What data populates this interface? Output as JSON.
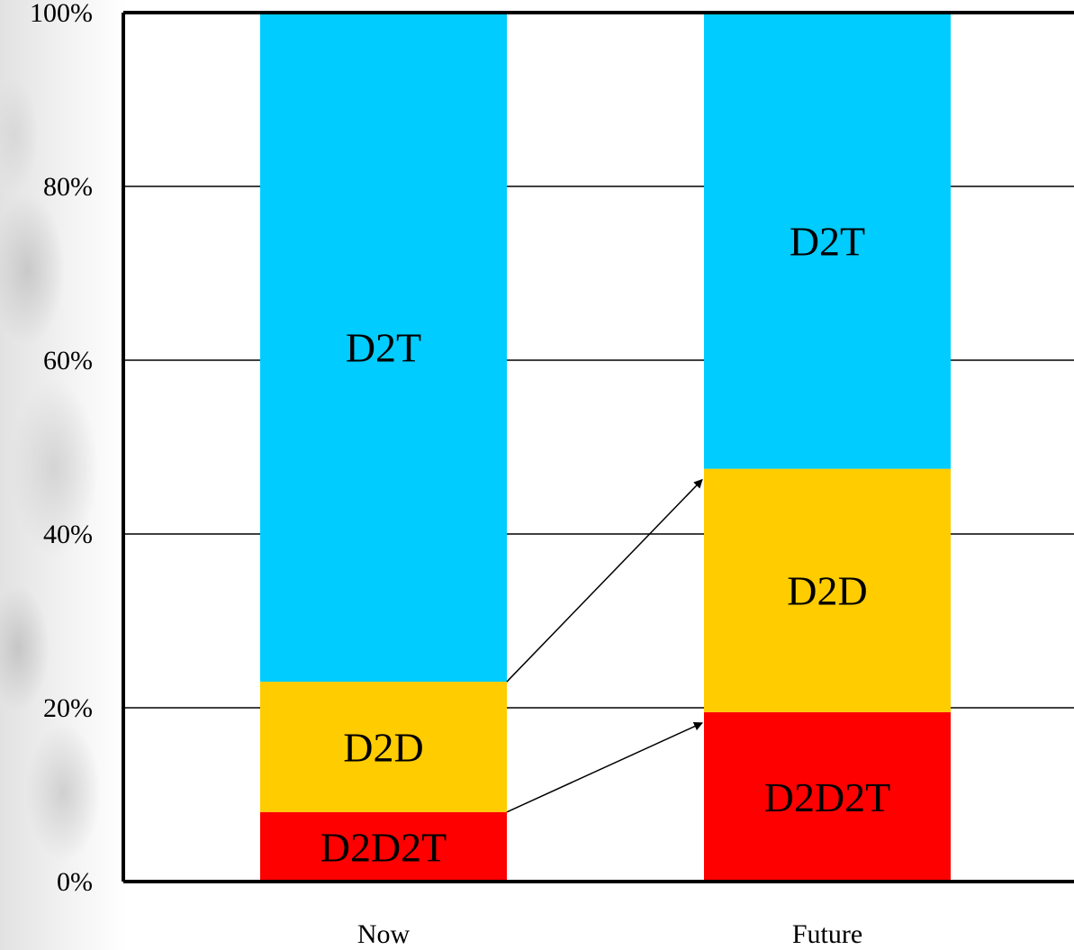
{
  "chart_data": {
    "type": "bar",
    "stacked": true,
    "categories": [
      "Now",
      "Future"
    ],
    "series": [
      {
        "name": "D2D2T",
        "values": [
          8,
          19.5
        ],
        "color": "#ff0000"
      },
      {
        "name": "D2D",
        "values": [
          15,
          28
        ],
        "color": "#ffcc00"
      },
      {
        "name": "D2T",
        "values": [
          77,
          52.5
        ],
        "color": "#00ccff"
      }
    ],
    "yticks": [
      "0%",
      "20%",
      "40%",
      "60%",
      "80%",
      "100%"
    ],
    "ylim": [
      0,
      100
    ],
    "grid": true,
    "legend": "none",
    "annotations": [
      {
        "type": "arrow",
        "from": "Now D2D top",
        "to": "Future D2D top"
      },
      {
        "type": "arrow",
        "from": "Now D2D2T top",
        "to": "Future D2D2T top"
      }
    ]
  }
}
